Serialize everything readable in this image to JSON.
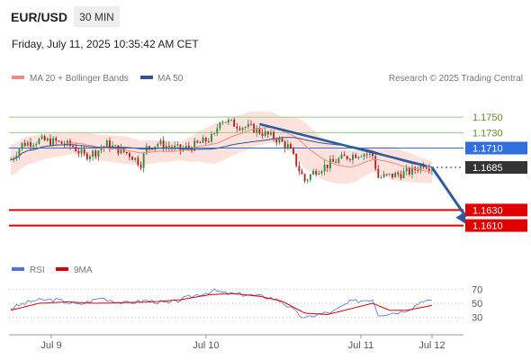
{
  "header": {
    "pair": "EUR/USD",
    "timeframe": "30 MIN",
    "datetime": "Friday, July 11, 2025 10:35:42 AM CET"
  },
  "legend": {
    "ma20_label": "MA 20 + Bollinger Bands",
    "ma50_label": "MA 50",
    "credit": "Research © 2025 Trading Central",
    "rsi_label": "RSI",
    "rsi_ma_label": "9MA"
  },
  "colors": {
    "ma20": "#f08a80",
    "ma50": "#34558f",
    "bands_fill": "#fde1dd",
    "candle_up": "#2e8b3d",
    "candle_down": "#b22222",
    "resistance": "#9acd80",
    "resistance_text": "#5a8f2a",
    "pivot": "#2f6fde",
    "support": "#e00000",
    "current": "#333333",
    "arrow": "#2c5aa0",
    "rsi_line": "#4a74d8",
    "rsi_ma_line": "#e00000"
  },
  "chart_data": {
    "type": "candlestick",
    "instrument": "EUR/USD",
    "timeframe": "30 MIN",
    "x_axis": {
      "ticks": [
        "Jul 9",
        "Jul 10",
        "Jul 11",
        "Jul 12"
      ]
    },
    "y_axis": {
      "range": [
        1.157,
        1.1785
      ]
    },
    "levels": [
      {
        "value": 1.175,
        "label": "1.1750",
        "kind": "resistance"
      },
      {
        "value": 1.173,
        "label": "1.1730",
        "kind": "resistance"
      },
      {
        "value": 1.171,
        "label": "1.1710",
        "kind": "pivot"
      },
      {
        "value": 1.1685,
        "label": "1.1685",
        "kind": "current"
      },
      {
        "value": 1.163,
        "label": "1.1630",
        "kind": "support"
      },
      {
        "value": 1.161,
        "label": "1.1610",
        "kind": "support"
      }
    ],
    "price_path": [
      [
        0,
        1.1695
      ],
      [
        4,
        1.1715
      ],
      [
        10,
        1.172
      ],
      [
        16,
        1.1718
      ],
      [
        22,
        1.1712
      ],
      [
        26,
        1.17
      ],
      [
        30,
        1.1705
      ],
      [
        34,
        1.1715
      ],
      [
        38,
        1.1708
      ],
      [
        42,
        1.1702
      ],
      [
        46,
        1.169
      ],
      [
        48,
        1.171
      ],
      [
        52,
        1.1716
      ],
      [
        56,
        1.1712
      ],
      [
        60,
        1.1708
      ],
      [
        64,
        1.1712
      ],
      [
        68,
        1.1718
      ],
      [
        72,
        1.1725
      ],
      [
        74,
        1.1748
      ],
      [
        78,
        1.1742
      ],
      [
        82,
        1.1738
      ],
      [
        86,
        1.1735
      ],
      [
        90,
        1.1728
      ],
      [
        94,
        1.1722
      ],
      [
        98,
        1.1712
      ],
      [
        100,
        1.1698
      ],
      [
        102,
        1.1682
      ],
      [
        104,
        1.1668
      ],
      [
        106,
        1.1675
      ],
      [
        108,
        1.1682
      ],
      [
        112,
        1.1688
      ],
      [
        116,
        1.1695
      ],
      [
        120,
        1.17
      ],
      [
        124,
        1.1704
      ],
      [
        128,
        1.17
      ],
      [
        130,
        1.1672
      ],
      [
        134,
        1.1674
      ],
      [
        138,
        1.1677
      ],
      [
        142,
        1.168
      ],
      [
        146,
        1.169
      ],
      [
        149,
        1.1685
      ]
    ],
    "bands_half_width": [
      [
        0,
        0.002
      ],
      [
        20,
        0.0014
      ],
      [
        40,
        0.0018
      ],
      [
        60,
        0.0012
      ],
      [
        72,
        0.0026
      ],
      [
        84,
        0.0024
      ],
      [
        96,
        0.0018
      ],
      [
        104,
        0.003
      ],
      [
        116,
        0.0024
      ],
      [
        128,
        0.0016
      ],
      [
        136,
        0.0022
      ],
      [
        149,
        0.0014
      ]
    ],
    "trendline": {
      "start": [
        88,
        1.1741
      ],
      "end": [
        147,
        1.1687
      ]
    },
    "projection_arrow": {
      "start": [
        149,
        1.1685
      ],
      "end": [
        161,
        1.1612
      ]
    },
    "rsi": {
      "ticks": [
        70,
        50,
        30
      ],
      "range": [
        18,
        82
      ],
      "rsi_path": [
        [
          0,
          43
        ],
        [
          8,
          54
        ],
        [
          16,
          55
        ],
        [
          24,
          48
        ],
        [
          32,
          58
        ],
        [
          40,
          50
        ],
        [
          48,
          54
        ],
        [
          56,
          50
        ],
        [
          64,
          60
        ],
        [
          72,
          68
        ],
        [
          76,
          64
        ],
        [
          84,
          62
        ],
        [
          92,
          58
        ],
        [
          96,
          52
        ],
        [
          100,
          40
        ],
        [
          104,
          28
        ],
        [
          108,
          34
        ],
        [
          114,
          38
        ],
        [
          120,
          52
        ],
        [
          128,
          56
        ],
        [
          130,
          34
        ],
        [
          134,
          36
        ],
        [
          138,
          38
        ],
        [
          142,
          44
        ],
        [
          146,
          55
        ],
        [
          149,
          52
        ]
      ],
      "ma9_path": [
        [
          0,
          40
        ],
        [
          10,
          50
        ],
        [
          20,
          52
        ],
        [
          30,
          50
        ],
        [
          40,
          51
        ],
        [
          50,
          52
        ],
        [
          60,
          55
        ],
        [
          70,
          62
        ],
        [
          78,
          64
        ],
        [
          88,
          60
        ],
        [
          96,
          53
        ],
        [
          104,
          36
        ],
        [
          112,
          34
        ],
        [
          120,
          42
        ],
        [
          128,
          50
        ],
        [
          134,
          40
        ],
        [
          140,
          40
        ],
        [
          149,
          47
        ]
      ]
    }
  }
}
